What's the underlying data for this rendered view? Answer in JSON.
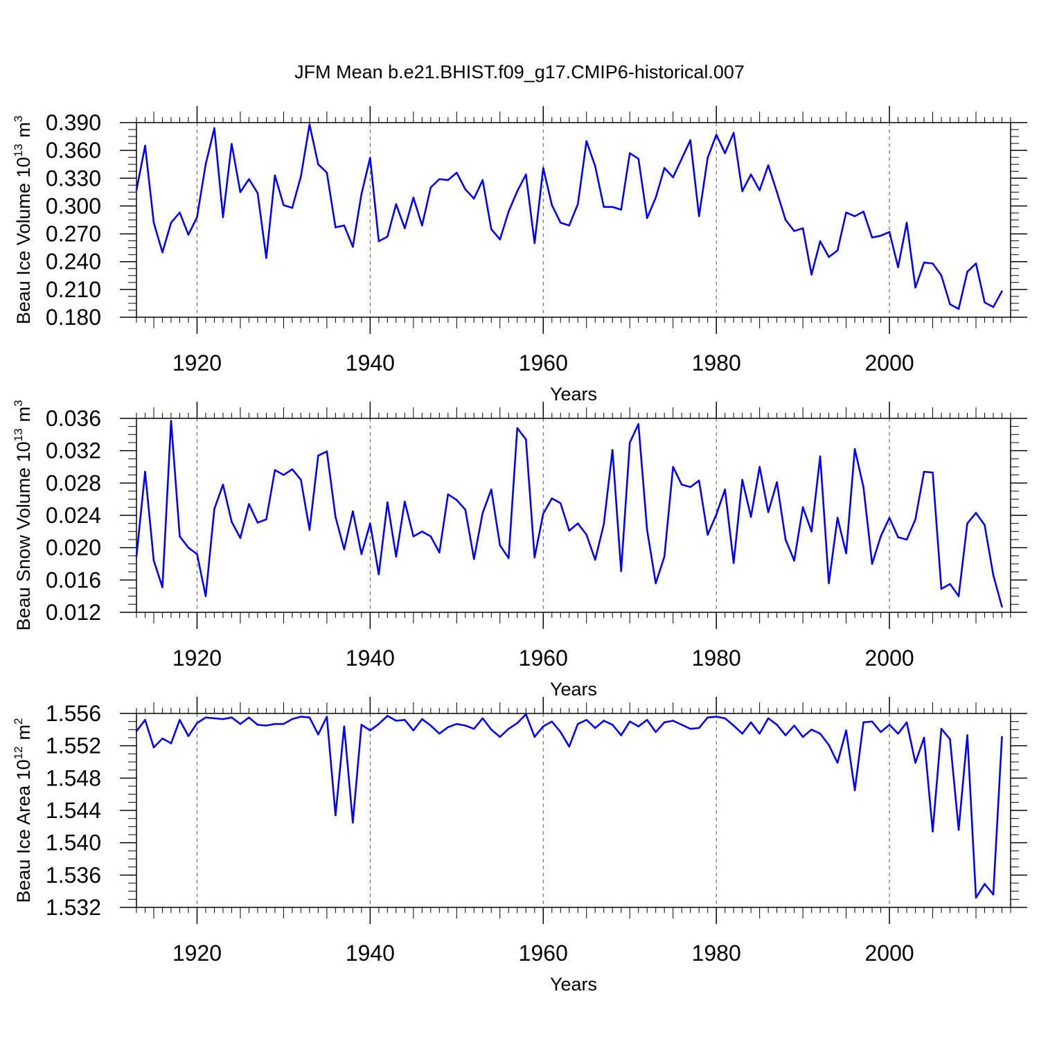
{
  "title": "JFM Mean b.e21.BHIST.f09_g17.CMIP6-historical.007",
  "colors": {
    "series": "#0000ff",
    "axis": "#000000",
    "grid": "#555555"
  },
  "chart_data": [
    {
      "type": "line",
      "ylabel_main": "Beau Ice Volume 10",
      "ylabel_exp": "13",
      "ylabel_unit": "m",
      "ylabel_unit_exp": "3",
      "xlabel": "Years",
      "xlim": [
        1913,
        2014
      ],
      "ylim": [
        0.18,
        0.39
      ],
      "ytick_labels": [
        "0.180",
        "0.210",
        "0.240",
        "0.270",
        "0.300",
        "0.330",
        "0.360",
        "0.390"
      ],
      "xtick_labels": [
        "1920",
        "1940",
        "1960",
        "1980",
        "2000"
      ],
      "x_start": 1913,
      "values": [
        0.317,
        0.365,
        0.282,
        0.25,
        0.282,
        0.293,
        0.269,
        0.288,
        0.345,
        0.384,
        0.288,
        0.367,
        0.315,
        0.329,
        0.314,
        0.244,
        0.333,
        0.301,
        0.298,
        0.332,
        0.388,
        0.345,
        0.336,
        0.277,
        0.279,
        0.256,
        0.313,
        0.352,
        0.262,
        0.267,
        0.302,
        0.276,
        0.309,
        0.279,
        0.32,
        0.329,
        0.328,
        0.336,
        0.318,
        0.308,
        0.328,
        0.275,
        0.264,
        0.294,
        0.316,
        0.334,
        0.26,
        0.341,
        0.301,
        0.282,
        0.279,
        0.302,
        0.37,
        0.343,
        0.299,
        0.299,
        0.296,
        0.357,
        0.351,
        0.287,
        0.309,
        0.341,
        0.331,
        0.351,
        0.371,
        0.289,
        0.352,
        0.377,
        0.357,
        0.379,
        0.316,
        0.334,
        0.317,
        0.344,
        0.315,
        0.285,
        0.273,
        0.276,
        0.226,
        0.262,
        0.245,
        0.252,
        0.293,
        0.289,
        0.294,
        0.266,
        0.268,
        0.272,
        0.234,
        0.282,
        0.212,
        0.239,
        0.238,
        0.225,
        0.194,
        0.189,
        0.229,
        0.238,
        0.196,
        0.191,
        0.208
      ]
    },
    {
      "type": "line",
      "ylabel_main": "Beau Snow Volume 10",
      "ylabel_exp": "13",
      "ylabel_unit": "m",
      "ylabel_unit_exp": "3",
      "xlabel": "Years",
      "xlim": [
        1913,
        2014
      ],
      "ylim": [
        0.012,
        0.036
      ],
      "ytick_labels": [
        "0.012",
        "0.016",
        "0.020",
        "0.024",
        "0.028",
        "0.032",
        "0.036"
      ],
      "xtick_labels": [
        "1920",
        "1940",
        "1960",
        "1980",
        "2000"
      ],
      "x_start": 1913,
      "values": [
        0.0189,
        0.0294,
        0.0184,
        0.0151,
        0.0357,
        0.0214,
        0.02,
        0.0192,
        0.014,
        0.0248,
        0.0278,
        0.0232,
        0.0212,
        0.0254,
        0.0231,
        0.0235,
        0.0296,
        0.029,
        0.0297,
        0.0284,
        0.0222,
        0.0314,
        0.0319,
        0.0238,
        0.0198,
        0.0245,
        0.0192,
        0.023,
        0.0167,
        0.0256,
        0.0189,
        0.0257,
        0.0214,
        0.022,
        0.0214,
        0.0194,
        0.0266,
        0.0259,
        0.0247,
        0.0186,
        0.0243,
        0.0272,
        0.0203,
        0.0187,
        0.0348,
        0.0334,
        0.0188,
        0.0242,
        0.0261,
        0.0255,
        0.0221,
        0.023,
        0.0216,
        0.0185,
        0.0229,
        0.0321,
        0.0171,
        0.033,
        0.0353,
        0.0222,
        0.0156,
        0.0189,
        0.03,
        0.0278,
        0.0275,
        0.0283,
        0.0216,
        0.0241,
        0.0272,
        0.0181,
        0.0284,
        0.0238,
        0.03,
        0.0244,
        0.0281,
        0.021,
        0.0184,
        0.025,
        0.022,
        0.0313,
        0.0156,
        0.0237,
        0.0193,
        0.0322,
        0.0275,
        0.018,
        0.0214,
        0.0237,
        0.0213,
        0.021,
        0.0235,
        0.0294,
        0.0293,
        0.0149,
        0.0155,
        0.014,
        0.023,
        0.0243,
        0.0228,
        0.0166,
        0.0127
      ]
    },
    {
      "type": "line",
      "ylabel_main": "Beau Ice Area 10",
      "ylabel_exp": "12",
      "ylabel_unit": "m",
      "ylabel_unit_exp": "2",
      "xlabel": "Years",
      "xlim": [
        1913,
        2014
      ],
      "ylim": [
        1.532,
        1.556
      ],
      "ytick_labels": [
        "1.532",
        "1.536",
        "1.540",
        "1.544",
        "1.548",
        "1.552",
        "1.556"
      ],
      "xtick_labels": [
        "1920",
        "1940",
        "1960",
        "1980",
        "2000"
      ],
      "x_start": 1913,
      "values": [
        1.5538,
        1.5552,
        1.5518,
        1.5529,
        1.5523,
        1.5552,
        1.5532,
        1.5548,
        1.5555,
        1.5554,
        1.5553,
        1.5555,
        1.5547,
        1.5555,
        1.5546,
        1.5545,
        1.5547,
        1.5547,
        1.5553,
        1.5556,
        1.5555,
        1.5534,
        1.5556,
        1.5434,
        1.5544,
        1.5425,
        1.5546,
        1.5539,
        1.5547,
        1.5557,
        1.5551,
        1.5552,
        1.5539,
        1.5553,
        1.5545,
        1.5535,
        1.5543,
        1.5547,
        1.5545,
        1.5541,
        1.5554,
        1.554,
        1.5531,
        1.5541,
        1.5548,
        1.5559,
        1.5531,
        1.5544,
        1.555,
        1.5537,
        1.5519,
        1.5547,
        1.5552,
        1.5542,
        1.5551,
        1.5546,
        1.5533,
        1.555,
        1.5544,
        1.5552,
        1.5537,
        1.5549,
        1.5551,
        1.5546,
        1.5541,
        1.5542,
        1.5555,
        1.5556,
        1.5554,
        1.5545,
        1.5535,
        1.5549,
        1.5535,
        1.5554,
        1.5546,
        1.5533,
        1.5545,
        1.5531,
        1.554,
        1.5535,
        1.5521,
        1.5499,
        1.5539,
        1.5465,
        1.5549,
        1.555,
        1.5537,
        1.5546,
        1.5535,
        1.5549,
        1.5499,
        1.553,
        1.5414,
        1.5541,
        1.5528,
        1.5416,
        1.5533,
        1.5332,
        1.5349,
        1.5336,
        1.5531
      ]
    }
  ]
}
